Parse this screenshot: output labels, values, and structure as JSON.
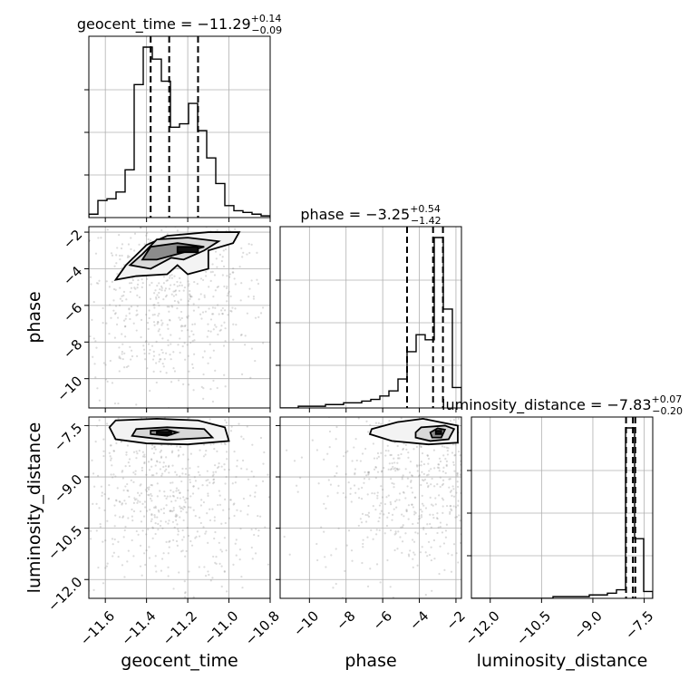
{
  "chart_data": {
    "type": "corner",
    "parameters": [
      {
        "name": "geocent_time",
        "median": -11.29,
        "plus": 0.14,
        "minus": 0.09,
        "range": [
          -11.68,
          -10.8
        ],
        "ticks": [
          -11.6,
          -11.4,
          -11.2,
          -11.0,
          -10.8
        ],
        "quantiles": [
          -11.38,
          -11.29,
          -11.15
        ]
      },
      {
        "name": "phase",
        "median": -3.25,
        "plus": 0.54,
        "minus": 1.42,
        "range": [
          -11.6,
          -1.7
        ],
        "ticks": [
          -10,
          -8,
          -6,
          -4,
          -2
        ],
        "quantiles": [
          -4.67,
          -3.25,
          -2.71
        ]
      },
      {
        "name": "luminosity_distance",
        "median": -7.83,
        "plus": 0.07,
        "minus": 0.2,
        "range": [
          -12.55,
          -7.25
        ],
        "ticks": [
          -12.0,
          -10.5,
          -9.0,
          -7.5
        ],
        "quantiles": [
          -8.03,
          -7.83,
          -7.76
        ]
      }
    ],
    "titles": [
      {
        "param": "geocent_time",
        "prefix": "geocent_time = ",
        "value": "−11.29",
        "sup": "+0.14",
        "sub": "−0.09"
      },
      {
        "param": "phase",
        "prefix": "phase = ",
        "value": "−3.25",
        "sup": "+0.54",
        "sub": "−1.42"
      },
      {
        "param": "luminosity_distance",
        "prefix": "luminosity_distance = ",
        "value": "−7.83",
        "sup": "+0.07",
        "sub": "−0.20"
      }
    ],
    "tick_labels": {
      "geocent_time": [
        "−11.6",
        "−11.4",
        "−11.2",
        "−11.0",
        "−10.8"
      ],
      "phase": [
        "−10",
        "−8",
        "−6",
        "−4",
        "−2"
      ],
      "luminosity_distance": [
        "−12.0",
        "−10.5",
        "−9.0",
        "−7.5"
      ]
    },
    "x_labels": [
      "geocent_time",
      "phase",
      "luminosity_distance"
    ],
    "y_labels": [
      "phase",
      "luminosity_distance"
    ],
    "histograms": {
      "geocent_time": {
        "edges": [
          -11.68,
          -11.636,
          -11.592,
          -11.548,
          -11.504,
          -11.46,
          -11.416,
          -11.372,
          -11.328,
          -11.284,
          -11.24,
          -11.196,
          -11.152,
          -11.108,
          -11.064,
          -11.02,
          -10.976,
          -10.932,
          -10.888,
          -10.844,
          -10.8
        ],
        "counts": [
          0.02,
          0.1,
          0.11,
          0.15,
          0.28,
          0.78,
          1.0,
          0.93,
          0.8,
          0.53,
          0.55,
          0.67,
          0.51,
          0.35,
          0.2,
          0.07,
          0.04,
          0.03,
          0.02,
          0.01
        ]
      },
      "phase": {
        "edges": [
          -11.6,
          -11.105,
          -10.61,
          -10.115,
          -9.62,
          -9.125,
          -8.63,
          -8.135,
          -7.64,
          -7.145,
          -6.65,
          -6.155,
          -5.66,
          -5.165,
          -4.67,
          -4.175,
          -3.68,
          -3.185,
          -2.69,
          -2.195,
          -1.7
        ],
        "counts": [
          0.0,
          0.0,
          0.01,
          0.01,
          0.01,
          0.02,
          0.02,
          0.03,
          0.03,
          0.04,
          0.05,
          0.07,
          0.1,
          0.17,
          0.33,
          0.43,
          0.4,
          1.0,
          0.58,
          0.12
        ]
      },
      "luminosity_distance": {
        "edges": [
          -12.55,
          -12.285,
          -12.02,
          -11.755,
          -11.49,
          -11.225,
          -10.96,
          -10.695,
          -10.43,
          -10.165,
          -9.9,
          -9.635,
          -9.37,
          -9.105,
          -8.84,
          -8.575,
          -8.31,
          -8.045,
          -7.78,
          -7.515,
          -7.25
        ],
        "counts": [
          0.0,
          0.0,
          0.0,
          0.0,
          0.0,
          0.0,
          0.0,
          0.0,
          0.0,
          0.01,
          0.01,
          0.01,
          0.01,
          0.02,
          0.02,
          0.03,
          0.05,
          1.0,
          0.35,
          0.04
        ]
      }
    },
    "contour_panels": [
      {
        "x": "geocent_time",
        "y": "phase",
        "outer_contour": [
          [
            -11.55,
            -4.6
          ],
          [
            -11.5,
            -3.8
          ],
          [
            -11.4,
            -2.7
          ],
          [
            -11.3,
            -2.2
          ],
          [
            -11.1,
            -2.0
          ],
          [
            -10.95,
            -2.0
          ],
          [
            -10.98,
            -2.6
          ],
          [
            -11.1,
            -3.0
          ],
          [
            -11.1,
            -4.0
          ],
          [
            -11.2,
            -4.3
          ],
          [
            -11.25,
            -3.8
          ],
          [
            -11.3,
            -4.3
          ],
          [
            -11.45,
            -4.4
          ]
        ],
        "middle_contour": [
          [
            -11.48,
            -3.8
          ],
          [
            -11.42,
            -3.2
          ],
          [
            -11.35,
            -2.4
          ],
          [
            -11.2,
            -2.3
          ],
          [
            -11.05,
            -2.5
          ],
          [
            -11.12,
            -3.0
          ],
          [
            -11.22,
            -3.5
          ],
          [
            -11.28,
            -3.4
          ],
          [
            -11.38,
            -4.0
          ]
        ],
        "inner_contour": [
          [
            -11.42,
            -3.5
          ],
          [
            -11.38,
            -2.8
          ],
          [
            -11.25,
            -2.6
          ],
          [
            -11.12,
            -2.8
          ],
          [
            -11.25,
            -3.2
          ],
          [
            -11.35,
            -3.5
          ]
        ],
        "core_contour": [
          [
            -11.25,
            -3.1
          ],
          [
            -11.25,
            -2.8
          ],
          [
            -11.15,
            -2.8
          ],
          [
            -11.15,
            -3.1
          ]
        ],
        "scatter_center": [
          -11.3,
          -5.5
        ]
      },
      {
        "x": "geocent_time",
        "y": "luminosity_distance",
        "outer_contour": [
          [
            -11.58,
            -7.55
          ],
          [
            -11.55,
            -7.35
          ],
          [
            -11.35,
            -7.3
          ],
          [
            -11.15,
            -7.35
          ],
          [
            -11.02,
            -7.55
          ],
          [
            -11.0,
            -7.95
          ],
          [
            -11.2,
            -8.05
          ],
          [
            -11.4,
            -8.02
          ],
          [
            -11.55,
            -7.9
          ]
        ],
        "middle_contour": [
          [
            -11.47,
            -7.8
          ],
          [
            -11.45,
            -7.6
          ],
          [
            -11.3,
            -7.55
          ],
          [
            -11.12,
            -7.6
          ],
          [
            -11.08,
            -7.85
          ],
          [
            -11.3,
            -7.92
          ]
        ],
        "inner_contour": [
          [
            -11.38,
            -7.75
          ],
          [
            -11.38,
            -7.65
          ],
          [
            -11.3,
            -7.62
          ],
          [
            -11.25,
            -7.7
          ],
          [
            -11.3,
            -7.8
          ]
        ],
        "core_contour": [
          [
            -11.35,
            -7.76
          ],
          [
            -11.35,
            -7.68
          ],
          [
            -11.28,
            -7.68
          ],
          [
            -11.28,
            -7.76
          ]
        ],
        "scatter_center": [
          -11.3,
          -9.5
        ]
      },
      {
        "x": "phase",
        "y": "luminosity_distance",
        "outer_contour": [
          [
            -6.6,
            -7.6
          ],
          [
            -5.2,
            -7.4
          ],
          [
            -3.8,
            -7.3
          ],
          [
            -1.9,
            -7.5
          ],
          [
            -1.9,
            -8.0
          ],
          [
            -3.5,
            -8.05
          ],
          [
            -5.5,
            -7.95
          ],
          [
            -6.7,
            -7.75
          ]
        ],
        "middle_contour": [
          [
            -4.2,
            -7.7
          ],
          [
            -3.9,
            -7.55
          ],
          [
            -2.6,
            -7.5
          ],
          [
            -2.1,
            -7.6
          ],
          [
            -2.4,
            -7.9
          ],
          [
            -3.4,
            -7.95
          ],
          [
            -4.2,
            -7.85
          ]
        ],
        "inner_contour": [
          [
            -3.4,
            -7.7
          ],
          [
            -3.0,
            -7.58
          ],
          [
            -2.6,
            -7.62
          ],
          [
            -2.8,
            -7.85
          ],
          [
            -3.3,
            -7.85
          ]
        ],
        "core_contour": [
          [
            -3.1,
            -7.75
          ],
          [
            -3.1,
            -7.65
          ],
          [
            -2.8,
            -7.65
          ],
          [
            -2.8,
            -7.75
          ]
        ],
        "scatter_center": [
          -4.0,
          -9.0
        ]
      }
    ],
    "grid": true,
    "colors": {
      "line": "#000000",
      "grid": "#b0b0b0",
      "scatter": "#888888",
      "density": "#555555"
    }
  }
}
